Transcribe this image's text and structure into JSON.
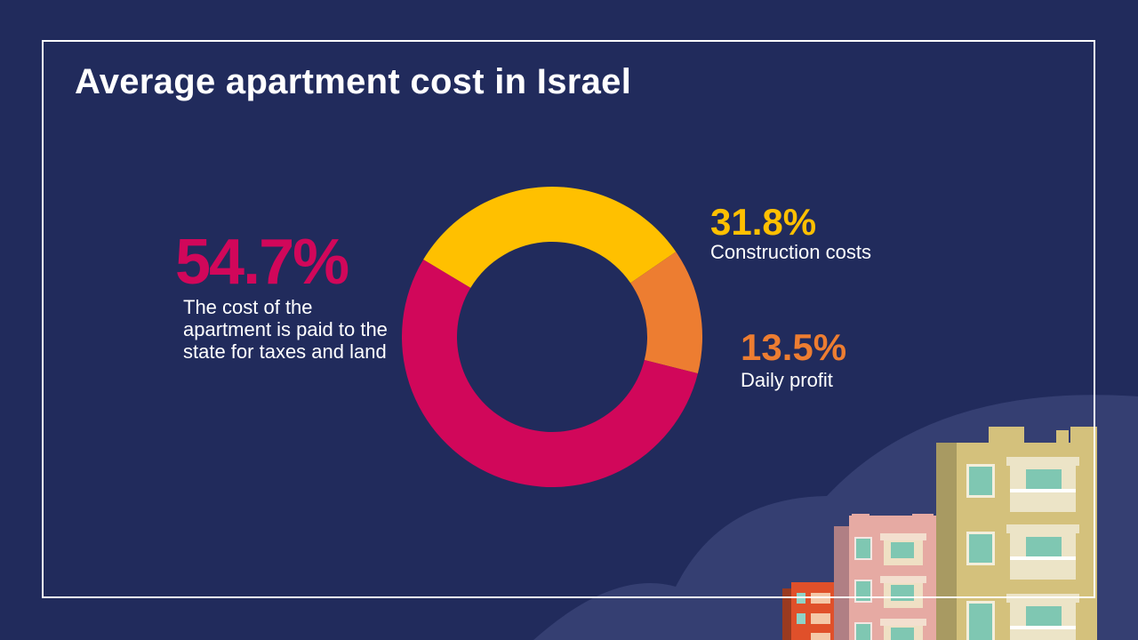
{
  "title": "Average apartment cost in Israel",
  "colors": {
    "background": "#212b5c",
    "frame": "#ffffff",
    "hill": "#353f72",
    "land_tax": "#d1075a",
    "construction": "#ffc000",
    "profit": "#ed7d31"
  },
  "chart_data": {
    "type": "pie",
    "variant": "donut",
    "title": "Average apartment cost in Israel",
    "slices": [
      {
        "label": "The cost of the apartment is paid to the state for taxes and land",
        "value": 54.7,
        "display": "54.7%",
        "color": "#d1075a"
      },
      {
        "label": "Construction costs",
        "value": 31.8,
        "display": "31.8%",
        "color": "#ffc000"
      },
      {
        "label": "Daily profit",
        "value": 13.5,
        "display": "13.5%",
        "color": "#ed7d31"
      }
    ],
    "start_slice": "Construction costs",
    "direction": "clockwise"
  },
  "annotations": {
    "land": {
      "percent": "54.7%",
      "text": "The cost of the apartment is paid to the state for taxes and land"
    },
    "construction": {
      "percent": "31.8%",
      "text": "Construction costs"
    },
    "profit": {
      "percent": "13.5%",
      "text": "Daily profit"
    }
  },
  "decoration": {
    "icon": "apartment-buildings-illustration"
  }
}
